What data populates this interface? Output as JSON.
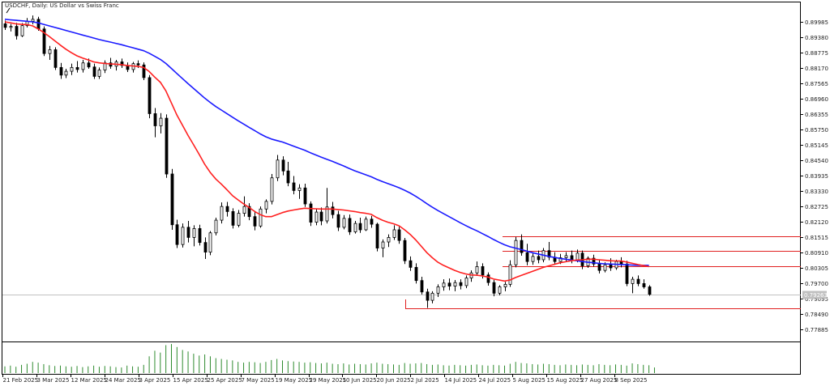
{
  "chart_title": "USDCHF, Daily:  US Dollar vs Swiss Franc",
  "colors": {
    "background": "#ffffff",
    "frame": "#000000",
    "ema_fast": "#ff2020",
    "ema_slow": "#1a1aff",
    "level_lines": "#e02020",
    "volume": "#2e8b2e",
    "price_line": "#c0c0c0",
    "price_label_bg": "#c0c0c0"
  },
  "chart_data": {
    "type": "candlestick",
    "title": "USDCHF, Daily:  US Dollar vs Swiss Franc",
    "y_ticks": [
      "0.89985",
      "0.89380",
      "0.88775",
      "0.88170",
      "0.87565",
      "0.86960",
      "0.86355",
      "0.85750",
      "0.85145",
      "0.84540",
      "0.83935",
      "0.83330",
      "0.82725",
      "0.82120",
      "0.81515",
      "0.80910",
      "0.80305",
      "0.79700",
      "0.79095",
      "0.78490",
      "0.77885"
    ],
    "ylim": [
      0.7762,
      0.9035
    ],
    "x_ticks": [
      "21 Feb 2025",
      "3 Mar 2025",
      "12 Mar 2025",
      "24 Mar 2025",
      "3 Apr 2025",
      "15 Apr 2025",
      "25 Apr 2025",
      "7 May 2025",
      "19 May 2025",
      "29 May 2025",
      "10 Jun 2025",
      "20 Jun 2025",
      "2 Jul 2025",
      "14 Jul 2025",
      "24 Jul 2025",
      "5 Aug 2025",
      "15 Aug 2025",
      "27 Aug 2025",
      "8 Sep 2025"
    ],
    "current_price": "0.79263",
    "level_lines": [
      0.8155,
      0.8096,
      0.8035,
      0.7872
    ],
    "candles": [
      {
        "o": 0.8992,
        "h": 0.9005,
        "l": 0.8968,
        "c": 0.8978
      },
      {
        "o": 0.8978,
        "h": 0.8992,
        "l": 0.8962,
        "c": 0.8982
      },
      {
        "o": 0.8982,
        "h": 0.8996,
        "l": 0.893,
        "c": 0.8945
      },
      {
        "o": 0.8945,
        "h": 0.8995,
        "l": 0.894,
        "c": 0.8985
      },
      {
        "o": 0.8985,
        "h": 0.9015,
        "l": 0.8978,
        "c": 0.9002
      },
      {
        "o": 0.9002,
        "h": 0.9025,
        "l": 0.899,
        "c": 0.901
      },
      {
        "o": 0.901,
        "h": 0.902,
        "l": 0.8965,
        "c": 0.8972
      },
      {
        "o": 0.8972,
        "h": 0.8982,
        "l": 0.8865,
        "c": 0.8875
      },
      {
        "o": 0.8875,
        "h": 0.8905,
        "l": 0.885,
        "c": 0.889
      },
      {
        "o": 0.889,
        "h": 0.89,
        "l": 0.881,
        "c": 0.882
      },
      {
        "o": 0.882,
        "h": 0.8838,
        "l": 0.8775,
        "c": 0.879
      },
      {
        "o": 0.879,
        "h": 0.8815,
        "l": 0.8778,
        "c": 0.8805
      },
      {
        "o": 0.8805,
        "h": 0.8835,
        "l": 0.879,
        "c": 0.882
      },
      {
        "o": 0.882,
        "h": 0.8845,
        "l": 0.88,
        "c": 0.8812
      },
      {
        "o": 0.8812,
        "h": 0.885,
        "l": 0.88,
        "c": 0.8838
      },
      {
        "o": 0.8838,
        "h": 0.8855,
        "l": 0.8815,
        "c": 0.8822
      },
      {
        "o": 0.8822,
        "h": 0.8835,
        "l": 0.8775,
        "c": 0.8785
      },
      {
        "o": 0.8785,
        "h": 0.882,
        "l": 0.8775,
        "c": 0.881
      },
      {
        "o": 0.881,
        "h": 0.8848,
        "l": 0.8798,
        "c": 0.8838
      },
      {
        "o": 0.8838,
        "h": 0.8858,
        "l": 0.8815,
        "c": 0.8825
      },
      {
        "o": 0.8825,
        "h": 0.885,
        "l": 0.8808,
        "c": 0.8842
      },
      {
        "o": 0.8842,
        "h": 0.8855,
        "l": 0.8818,
        "c": 0.8828
      },
      {
        "o": 0.8828,
        "h": 0.884,
        "l": 0.8802,
        "c": 0.8812
      },
      {
        "o": 0.8812,
        "h": 0.8842,
        "l": 0.88,
        "c": 0.8835
      },
      {
        "o": 0.8835,
        "h": 0.8848,
        "l": 0.8818,
        "c": 0.883
      },
      {
        "o": 0.883,
        "h": 0.884,
        "l": 0.877,
        "c": 0.878
      },
      {
        "o": 0.878,
        "h": 0.879,
        "l": 0.862,
        "c": 0.8638
      },
      {
        "o": 0.8638,
        "h": 0.866,
        "l": 0.8545,
        "c": 0.859
      },
      {
        "o": 0.859,
        "h": 0.864,
        "l": 0.856,
        "c": 0.862
      },
      {
        "o": 0.862,
        "h": 0.8635,
        "l": 0.8385,
        "c": 0.84
      },
      {
        "o": 0.84,
        "h": 0.842,
        "l": 0.818,
        "c": 0.82
      },
      {
        "o": 0.82,
        "h": 0.822,
        "l": 0.8108,
        "c": 0.8122
      },
      {
        "o": 0.8122,
        "h": 0.8205,
        "l": 0.811,
        "c": 0.819
      },
      {
        "o": 0.819,
        "h": 0.8215,
        "l": 0.813,
        "c": 0.815
      },
      {
        "o": 0.815,
        "h": 0.8198,
        "l": 0.8115,
        "c": 0.8185
      },
      {
        "o": 0.8185,
        "h": 0.82,
        "l": 0.8118,
        "c": 0.813
      },
      {
        "o": 0.813,
        "h": 0.815,
        "l": 0.8065,
        "c": 0.8092
      },
      {
        "o": 0.8092,
        "h": 0.8175,
        "l": 0.808,
        "c": 0.8168
      },
      {
        "o": 0.8168,
        "h": 0.8228,
        "l": 0.8158,
        "c": 0.8218
      },
      {
        "o": 0.8218,
        "h": 0.8288,
        "l": 0.8205,
        "c": 0.8272
      },
      {
        "o": 0.8272,
        "h": 0.829,
        "l": 0.8232,
        "c": 0.8252
      },
      {
        "o": 0.8252,
        "h": 0.8265,
        "l": 0.8185,
        "c": 0.8198
      },
      {
        "o": 0.8198,
        "h": 0.8258,
        "l": 0.819,
        "c": 0.8245
      },
      {
        "o": 0.8245,
        "h": 0.8312,
        "l": 0.8232,
        "c": 0.8272
      },
      {
        "o": 0.8272,
        "h": 0.8285,
        "l": 0.8218,
        "c": 0.8232
      },
      {
        "o": 0.8232,
        "h": 0.8255,
        "l": 0.8178,
        "c": 0.8195
      },
      {
        "o": 0.8195,
        "h": 0.8272,
        "l": 0.8188,
        "c": 0.8262
      },
      {
        "o": 0.8262,
        "h": 0.83,
        "l": 0.8245,
        "c": 0.8292
      },
      {
        "o": 0.8292,
        "h": 0.84,
        "l": 0.828,
        "c": 0.8385
      },
      {
        "o": 0.8385,
        "h": 0.8475,
        "l": 0.8372,
        "c": 0.8455
      },
      {
        "o": 0.8455,
        "h": 0.847,
        "l": 0.8395,
        "c": 0.8412
      },
      {
        "o": 0.8412,
        "h": 0.8448,
        "l": 0.8352,
        "c": 0.8365
      },
      {
        "o": 0.8365,
        "h": 0.8392,
        "l": 0.832,
        "c": 0.8335
      },
      {
        "o": 0.8335,
        "h": 0.836,
        "l": 0.8302,
        "c": 0.8345
      },
      {
        "o": 0.8345,
        "h": 0.8362,
        "l": 0.827,
        "c": 0.8282
      },
      {
        "o": 0.8282,
        "h": 0.8292,
        "l": 0.8195,
        "c": 0.821
      },
      {
        "o": 0.821,
        "h": 0.8262,
        "l": 0.8198,
        "c": 0.825
      },
      {
        "o": 0.825,
        "h": 0.8268,
        "l": 0.8198,
        "c": 0.8215
      },
      {
        "o": 0.8215,
        "h": 0.8345,
        "l": 0.8205,
        "c": 0.827
      },
      {
        "o": 0.827,
        "h": 0.829,
        "l": 0.8225,
        "c": 0.824
      },
      {
        "o": 0.824,
        "h": 0.8255,
        "l": 0.8175,
        "c": 0.819
      },
      {
        "o": 0.819,
        "h": 0.8238,
        "l": 0.8182,
        "c": 0.8225
      },
      {
        "o": 0.8225,
        "h": 0.824,
        "l": 0.816,
        "c": 0.8172
      },
      {
        "o": 0.8172,
        "h": 0.8215,
        "l": 0.8165,
        "c": 0.8205
      },
      {
        "o": 0.8205,
        "h": 0.8228,
        "l": 0.8168,
        "c": 0.818
      },
      {
        "o": 0.818,
        "h": 0.8232,
        "l": 0.8175,
        "c": 0.8222
      },
      {
        "o": 0.8222,
        "h": 0.8235,
        "l": 0.8188,
        "c": 0.8202
      },
      {
        "o": 0.8202,
        "h": 0.8208,
        "l": 0.8095,
        "c": 0.8108
      },
      {
        "o": 0.8108,
        "h": 0.8142,
        "l": 0.8072,
        "c": 0.8132
      },
      {
        "o": 0.8132,
        "h": 0.8162,
        "l": 0.8112,
        "c": 0.815
      },
      {
        "o": 0.815,
        "h": 0.8198,
        "l": 0.814,
        "c": 0.818
      },
      {
        "o": 0.818,
        "h": 0.8192,
        "l": 0.8125,
        "c": 0.8138
      },
      {
        "o": 0.8138,
        "h": 0.8148,
        "l": 0.8045,
        "c": 0.8058
      },
      {
        "o": 0.8058,
        "h": 0.8075,
        "l": 0.8018,
        "c": 0.8032
      },
      {
        "o": 0.8032,
        "h": 0.8048,
        "l": 0.7968,
        "c": 0.798
      },
      {
        "o": 0.798,
        "h": 0.7995,
        "l": 0.7925,
        "c": 0.7935
      },
      {
        "o": 0.7935,
        "h": 0.7948,
        "l": 0.7872,
        "c": 0.7902
      },
      {
        "o": 0.7902,
        "h": 0.7938,
        "l": 0.789,
        "c": 0.793
      },
      {
        "o": 0.793,
        "h": 0.7965,
        "l": 0.7915,
        "c": 0.7955
      },
      {
        "o": 0.7955,
        "h": 0.7985,
        "l": 0.794,
        "c": 0.797
      },
      {
        "o": 0.797,
        "h": 0.7988,
        "l": 0.7942,
        "c": 0.7958
      },
      {
        "o": 0.7958,
        "h": 0.7982,
        "l": 0.7938,
        "c": 0.7972
      },
      {
        "o": 0.7972,
        "h": 0.7985,
        "l": 0.7945,
        "c": 0.796
      },
      {
        "o": 0.796,
        "h": 0.8,
        "l": 0.795,
        "c": 0.799
      },
      {
        "o": 0.799,
        "h": 0.802,
        "l": 0.7975,
        "c": 0.801
      },
      {
        "o": 0.801,
        "h": 0.8055,
        "l": 0.7998,
        "c": 0.8035
      },
      {
        "o": 0.8035,
        "h": 0.8048,
        "l": 0.7988,
        "c": 0.8002
      },
      {
        "o": 0.8002,
        "h": 0.8012,
        "l": 0.796,
        "c": 0.7972
      },
      {
        "o": 0.7972,
        "h": 0.7982,
        "l": 0.7918,
        "c": 0.793
      },
      {
        "o": 0.793,
        "h": 0.7962,
        "l": 0.7922,
        "c": 0.7955
      },
      {
        "o": 0.7955,
        "h": 0.7975,
        "l": 0.7938,
        "c": 0.7965
      },
      {
        "o": 0.7965,
        "h": 0.806,
        "l": 0.7955,
        "c": 0.8042
      },
      {
        "o": 0.8042,
        "h": 0.8152,
        "l": 0.8032,
        "c": 0.8138
      },
      {
        "o": 0.8138,
        "h": 0.8162,
        "l": 0.8078,
        "c": 0.809
      },
      {
        "o": 0.809,
        "h": 0.8125,
        "l": 0.804,
        "c": 0.8055
      },
      {
        "o": 0.8055,
        "h": 0.8088,
        "l": 0.8042,
        "c": 0.8075
      },
      {
        "o": 0.8075,
        "h": 0.8098,
        "l": 0.8048,
        "c": 0.8062
      },
      {
        "o": 0.8062,
        "h": 0.8108,
        "l": 0.8052,
        "c": 0.8098
      },
      {
        "o": 0.8098,
        "h": 0.8132,
        "l": 0.806,
        "c": 0.8072
      },
      {
        "o": 0.8072,
        "h": 0.8092,
        "l": 0.8042,
        "c": 0.8055
      },
      {
        "o": 0.8055,
        "h": 0.8085,
        "l": 0.8045,
        "c": 0.807
      },
      {
        "o": 0.807,
        "h": 0.8092,
        "l": 0.8055,
        "c": 0.8078
      },
      {
        "o": 0.8078,
        "h": 0.8098,
        "l": 0.8048,
        "c": 0.806
      },
      {
        "o": 0.806,
        "h": 0.8102,
        "l": 0.8052,
        "c": 0.8088
      },
      {
        "o": 0.8088,
        "h": 0.8098,
        "l": 0.8025,
        "c": 0.8038
      },
      {
        "o": 0.8038,
        "h": 0.8075,
        "l": 0.803,
        "c": 0.8068
      },
      {
        "o": 0.8068,
        "h": 0.8082,
        "l": 0.8035,
        "c": 0.8045
      },
      {
        "o": 0.8045,
        "h": 0.8062,
        "l": 0.8008,
        "c": 0.802
      },
      {
        "o": 0.802,
        "h": 0.8052,
        "l": 0.8012,
        "c": 0.8042
      },
      {
        "o": 0.8042,
        "h": 0.8068,
        "l": 0.8018,
        "c": 0.803
      },
      {
        "o": 0.803,
        "h": 0.8062,
        "l": 0.8022,
        "c": 0.8055
      },
      {
        "o": 0.8055,
        "h": 0.8072,
        "l": 0.8032,
        "c": 0.8045
      },
      {
        "o": 0.8045,
        "h": 0.8058,
        "l": 0.7958,
        "c": 0.7968
      },
      {
        "o": 0.7968,
        "h": 0.7995,
        "l": 0.793,
        "c": 0.7985
      },
      {
        "o": 0.7985,
        "h": 0.8,
        "l": 0.7958,
        "c": 0.7968
      },
      {
        "o": 0.7968,
        "h": 0.7985,
        "l": 0.7948,
        "c": 0.7955
      },
      {
        "o": 0.7955,
        "h": 0.7962,
        "l": 0.792,
        "c": 0.7926
      }
    ],
    "ema_fast": [
      0.9,
      0.8996,
      0.8992,
      0.899,
      0.8989,
      0.8984,
      0.8972,
      0.8958,
      0.8942,
      0.8925,
      0.8908,
      0.8892,
      0.8878,
      0.8866,
      0.8857,
      0.885,
      0.8842,
      0.8838,
      0.8836,
      0.8834,
      0.8833,
      0.8831,
      0.8828,
      0.8826,
      0.8824,
      0.882,
      0.8804,
      0.8782,
      0.8762,
      0.8728,
      0.868,
      0.8632,
      0.8592,
      0.8552,
      0.8515,
      0.8477,
      0.8438,
      0.8406,
      0.838,
      0.836,
      0.8338,
      0.8315,
      0.8298,
      0.8282,
      0.8268,
      0.8252,
      0.824,
      0.8232,
      0.8232,
      0.824,
      0.8248,
      0.8254,
      0.8258,
      0.8262,
      0.8265,
      0.8264,
      0.8263,
      0.8262,
      0.8262,
      0.8262,
      0.826,
      0.8258,
      0.8255,
      0.8252,
      0.8248,
      0.8245,
      0.8241,
      0.8228,
      0.8218,
      0.821,
      0.8204,
      0.8196,
      0.818,
      0.8162,
      0.814,
      0.8115,
      0.809,
      0.807,
      0.8052,
      0.804,
      0.803,
      0.802,
      0.8012,
      0.8006,
      0.8002,
      0.8001,
      0.7998,
      0.7994,
      0.7986,
      0.7982,
      0.7978,
      0.7982,
      0.7992,
      0.8,
      0.8008,
      0.8016,
      0.8024,
      0.8032,
      0.8038,
      0.8044,
      0.805,
      0.8054,
      0.8058,
      0.8061,
      0.8062,
      0.8064,
      0.8064,
      0.8062,
      0.806,
      0.8058,
      0.8057,
      0.8057,
      0.8053,
      0.8048,
      0.8043,
      0.8039,
      0.8035
    ],
    "ema_slow": [
      0.901,
      0.9008,
      0.9006,
      0.9004,
      0.9002,
      0.9,
      0.8996,
      0.899,
      0.8984,
      0.8978,
      0.8972,
      0.8966,
      0.896,
      0.8954,
      0.8948,
      0.8942,
      0.8936,
      0.893,
      0.8925,
      0.892,
      0.8915,
      0.891,
      0.8904,
      0.8898,
      0.8892,
      0.8886,
      0.8876,
      0.8864,
      0.8852,
      0.8836,
      0.8816,
      0.8796,
      0.8776,
      0.8756,
      0.8737,
      0.8718,
      0.8699,
      0.8682,
      0.8666,
      0.8652,
      0.8638,
      0.8624,
      0.861,
      0.8597,
      0.8584,
      0.8571,
      0.8558,
      0.8547,
      0.8538,
      0.8532,
      0.8526,
      0.8518,
      0.851,
      0.8502,
      0.8494,
      0.8484,
      0.8475,
      0.8466,
      0.8458,
      0.845,
      0.8441,
      0.8432,
      0.8422,
      0.8413,
      0.8405,
      0.8397,
      0.8389,
      0.8379,
      0.837,
      0.8362,
      0.8354,
      0.8346,
      0.8336,
      0.8325,
      0.8312,
      0.8298,
      0.8283,
      0.8269,
      0.8256,
      0.8244,
      0.8232,
      0.822,
      0.8208,
      0.8197,
      0.8186,
      0.8176,
      0.8165,
      0.8154,
      0.8142,
      0.8131,
      0.8121,
      0.8113,
      0.8108,
      0.8102,
      0.8096,
      0.809,
      0.8085,
      0.808,
      0.8075,
      0.8071,
      0.8067,
      0.8064,
      0.8061,
      0.8058,
      0.8055,
      0.8052,
      0.805,
      0.8048,
      0.8046,
      0.8045,
      0.8044,
      0.8043,
      0.8042,
      0.8041,
      0.804,
      0.804,
      0.804
    ],
    "volume": [
      0.18,
      0.2,
      0.17,
      0.22,
      0.25,
      0.3,
      0.28,
      0.24,
      0.21,
      0.19,
      0.2,
      0.18,
      0.17,
      0.19,
      0.16,
      0.18,
      0.2,
      0.17,
      0.19,
      0.18,
      0.16,
      0.15,
      0.2,
      0.18,
      0.17,
      0.22,
      0.45,
      0.6,
      0.55,
      0.75,
      0.78,
      0.7,
      0.62,
      0.58,
      0.52,
      0.47,
      0.5,
      0.45,
      0.4,
      0.38,
      0.36,
      0.34,
      0.3,
      0.28,
      0.3,
      0.29,
      0.27,
      0.3,
      0.35,
      0.38,
      0.34,
      0.32,
      0.31,
      0.3,
      0.28,
      0.29,
      0.27,
      0.26,
      0.28,
      0.25,
      0.24,
      0.26,
      0.23,
      0.25,
      0.24,
      0.23,
      0.26,
      0.28,
      0.25,
      0.24,
      0.23,
      0.22,
      0.27,
      0.25,
      0.26,
      0.27,
      0.24,
      0.22,
      0.23,
      0.21,
      0.2,
      0.22,
      0.21,
      0.2,
      0.22,
      0.23,
      0.21,
      0.2,
      0.22,
      0.21,
      0.2,
      0.25,
      0.3,
      0.27,
      0.26,
      0.24,
      0.23,
      0.25,
      0.24,
      0.22,
      0.21,
      0.23,
      0.22,
      0.21,
      0.23,
      0.22,
      0.21,
      0.24,
      0.22,
      0.21,
      0.23,
      0.22,
      0.2,
      0.26,
      0.24,
      0.22,
      0.21,
      0.15
    ]
  }
}
